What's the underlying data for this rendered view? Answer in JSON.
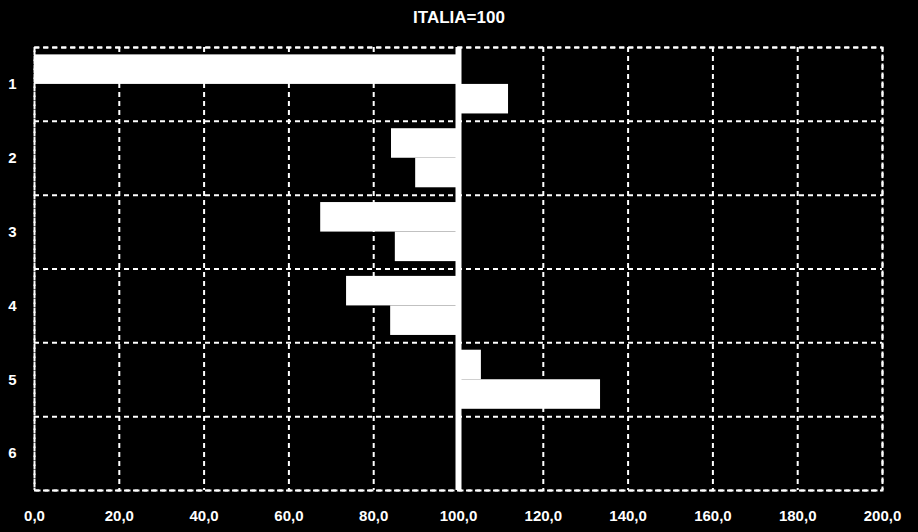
{
  "chart_data": {
    "type": "bar",
    "title": "ITALIA=100",
    "orientation": "horizontal",
    "categories": [
      "1",
      "2",
      "3",
      "4",
      "5",
      "6"
    ],
    "baseline": 100,
    "series": [
      {
        "color": "#ffffff",
        "values": [
          0,
          84.2,
          67.5,
          73.6,
          105.4,
          null
        ]
      },
      {
        "color": "#ffffff",
        "values": [
          111.8,
          89.9,
          85.1,
          84.0,
          133.5,
          null
        ]
      }
    ],
    "xlim": [
      0,
      200
    ],
    "xticks": [
      {
        "value": 0,
        "label": "0,0"
      },
      {
        "value": 20,
        "label": "20,0"
      },
      {
        "value": 40,
        "label": "40,0"
      },
      {
        "value": 60,
        "label": "60,0"
      },
      {
        "value": 80,
        "label": "80,0"
      },
      {
        "value": 100,
        "label": "100,0"
      },
      {
        "value": 120,
        "label": "120,0"
      },
      {
        "value": 140,
        "label": "140,0"
      },
      {
        "value": 160,
        "label": "160,0"
      },
      {
        "value": 180,
        "label": "180,0"
      },
      {
        "value": 200,
        "label": "200,0"
      }
    ],
    "grid": true
  }
}
